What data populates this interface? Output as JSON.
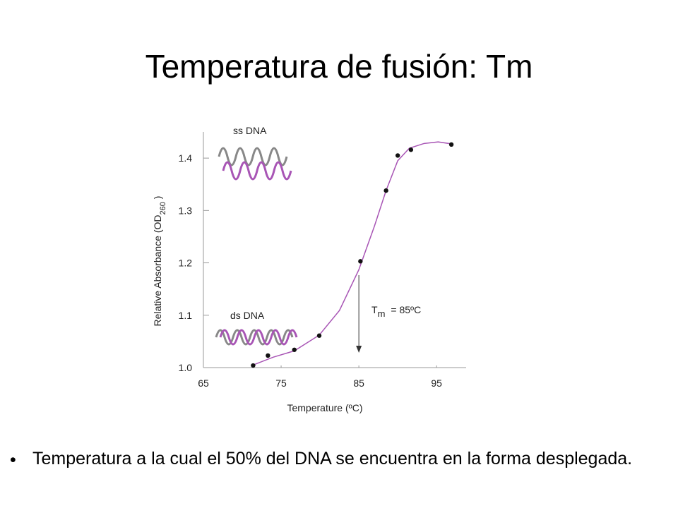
{
  "title": "Temperatura de fusión: Tm",
  "bullet": "Temperatura a la cual el 50% del DNA se encuentra en la forma desplegada.",
  "chart_data": {
    "type": "scatter",
    "x_label": "Temperature (ºC)",
    "y_label": {
      "text": "Relative Absorbance (OD",
      "subscript": "260",
      "close": " )"
    },
    "annotations": {
      "ss": "ss DNA",
      "ds": "ds DNA",
      "tm_symbol": "T",
      "tm_subscript": "m",
      "tm_text": "= 85ºC"
    },
    "tm": 85,
    "xlim": [
      65,
      98.8
    ],
    "ylim": [
      1,
      1.45
    ],
    "xticks": [
      65,
      75,
      85,
      95
    ],
    "yticks": [
      {
        "value": 1,
        "label": "1.0"
      },
      1.1,
      1.2,
      1.3,
      1.4
    ],
    "points": {
      "color": "#111111",
      "x": [
        71.4,
        73.3,
        76.7,
        79.9,
        85.2,
        88.5,
        90.0,
        91.7,
        96.9
      ],
      "values": [
        1.004,
        1.023,
        1.034,
        1.061,
        1.203,
        1.338,
        1.405,
        1.416,
        1.426
      ]
    },
    "curve": {
      "color": "#a855b5",
      "x": [
        71.4,
        74,
        76.7,
        79.9,
        82.5,
        85,
        87,
        88.5,
        90,
        91.5,
        93.4,
        95.2,
        97
      ],
      "values": [
        1.005,
        1.02,
        1.032,
        1.062,
        1.109,
        1.187,
        1.27,
        1.338,
        1.395,
        1.419,
        1.428,
        1.431,
        1.427
      ]
    }
  }
}
